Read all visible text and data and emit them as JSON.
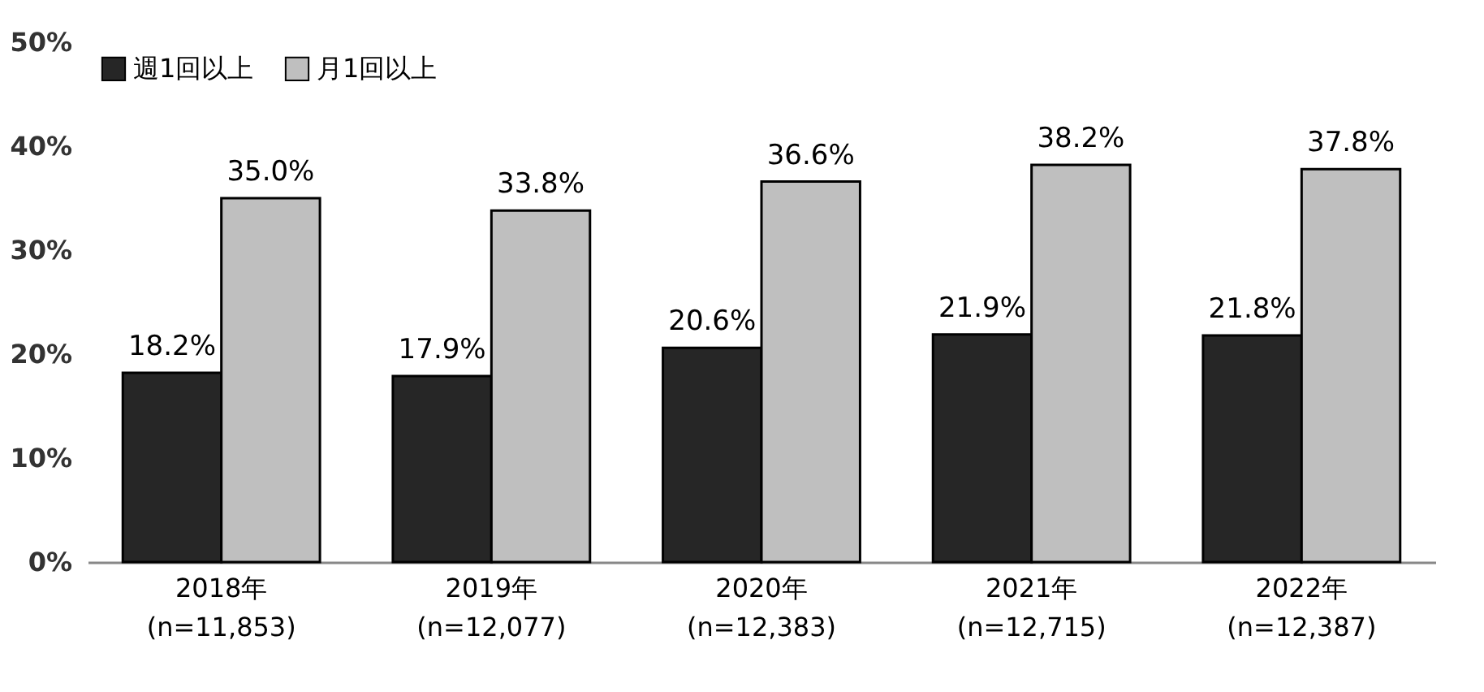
{
  "chart_data": {
    "type": "bar",
    "categories": [
      "2018年\n(n=11,853)",
      "2019年\n(n=12,077)",
      "2020年\n(n=12,383)",
      "2021年\n(n=12,715)",
      "2022年\n(n=12,387)"
    ],
    "series": [
      {
        "name": "週1回以上",
        "color": "#262626",
        "values": [
          18.2,
          17.9,
          20.6,
          21.9,
          21.8
        ],
        "value_labels": [
          "18.2%",
          "17.9%",
          "20.6%",
          "21.9%",
          "21.8%"
        ]
      },
      {
        "name": "月1回以上",
        "color": "#bfbfbf",
        "values": [
          35.0,
          33.8,
          36.6,
          38.2,
          37.8
        ],
        "value_labels": [
          "35.0%",
          "33.8%",
          "36.6%",
          "38.2%",
          "37.8%"
        ]
      }
    ],
    "ylim": [
      0,
      50
    ],
    "yticks": [
      {
        "value": 0,
        "label": "0%"
      },
      {
        "value": 10,
        "label": "10%"
      },
      {
        "value": 20,
        "label": "20%"
      },
      {
        "value": 30,
        "label": "30%"
      },
      {
        "value": 40,
        "label": "40%"
      },
      {
        "value": 50,
        "label": "50%"
      }
    ],
    "legend": "top left"
  }
}
